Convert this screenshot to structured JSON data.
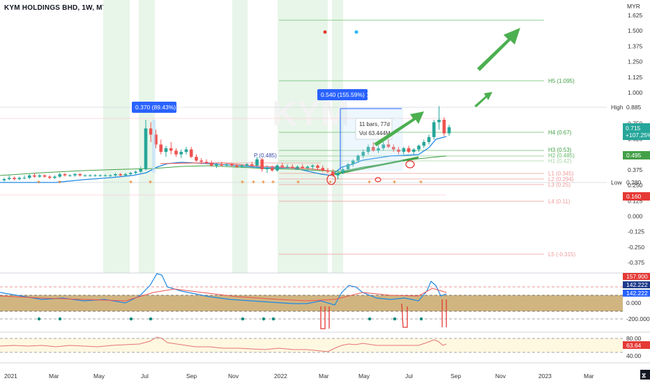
{
  "header": {
    "symbol_title": "KYM HOLDINGS BHD, 1W, MYX"
  },
  "watermark": "KYM",
  "currency": "MYR",
  "price_axis": {
    "labels": [
      "1.625",
      "1.500",
      "1.375",
      "1.250",
      "1.125",
      "1.000",
      "0.875",
      "0.750",
      "0.625",
      "0.375",
      "0.250",
      "0.125",
      "0.000",
      "-0.125",
      "-0.250",
      "-0.375"
    ]
  },
  "price_tags": {
    "high_label": "High",
    "high_value": "0.885",
    "current_value": "0.715",
    "current_change": "+107.25%",
    "green_value": "0.495",
    "low_label": "Low",
    "low_value": "0.280",
    "red_value": "0.160"
  },
  "pivot_levels": {
    "h5": "H5 (1.095)",
    "h4": "H4 (0.67)",
    "h3": "H3 (0.53)",
    "h2": "H2 (0.485)",
    "h1": "H1 (0.42)",
    "p": "P (0.485)",
    "l1": "L1 (0.345)",
    "l2": "L2 (0.294)",
    "l3": "L3 (0.25)",
    "l4": "L4 (0.11)",
    "l5": "L5 (-0.315)"
  },
  "measure_boxes": {
    "box1": "0.370 (89.43%) 74",
    "box2": "0.540 (155.59%) 108",
    "bars": "11 bars, 77d",
    "vol": "Vol 63.444M"
  },
  "osc1_axis": {
    "v1": "157.900",
    "v2": "142.222",
    "v3": "142.222",
    "zero": "0.000",
    "neg": "-200.000"
  },
  "osc2_axis": {
    "v80": "80.00",
    "v63": "63.64",
    "v40": "40.00"
  },
  "time_axis": [
    "2021",
    "Mar",
    "May",
    "Jul",
    "Sep",
    "Nov",
    "2022",
    "Mar",
    "May",
    "Jul",
    "Sep",
    "Nov",
    "2023",
    "Mar"
  ],
  "colors": {
    "up": "#26a69a",
    "down": "#ef5350",
    "accent": "#2962ff",
    "arrow": "#4caf50"
  },
  "chart_data": {
    "type": "candlestick",
    "timeframe": "1W",
    "price_range": [
      -0.375,
      1.625
    ],
    "ohlc": [
      [
        0.29,
        0.31,
        0.28,
        0.3
      ],
      [
        0.3,
        0.33,
        0.29,
        0.31
      ],
      [
        0.31,
        0.32,
        0.29,
        0.3
      ],
      [
        0.3,
        0.32,
        0.29,
        0.31
      ],
      [
        0.31,
        0.33,
        0.3,
        0.31
      ],
      [
        0.31,
        0.34,
        0.3,
        0.33
      ],
      [
        0.33,
        0.35,
        0.31,
        0.32
      ],
      [
        0.32,
        0.34,
        0.31,
        0.33
      ],
      [
        0.33,
        0.34,
        0.31,
        0.32
      ],
      [
        0.32,
        0.33,
        0.3,
        0.31
      ],
      [
        0.31,
        0.33,
        0.3,
        0.32
      ],
      [
        0.32,
        0.35,
        0.31,
        0.34
      ],
      [
        0.34,
        0.35,
        0.32,
        0.33
      ],
      [
        0.33,
        0.34,
        0.32,
        0.33
      ],
      [
        0.33,
        0.35,
        0.32,
        0.34
      ],
      [
        0.34,
        0.35,
        0.32,
        0.33
      ],
      [
        0.33,
        0.34,
        0.32,
        0.33
      ],
      [
        0.33,
        0.34,
        0.32,
        0.33
      ],
      [
        0.33,
        0.34,
        0.32,
        0.33
      ],
      [
        0.33,
        0.34,
        0.32,
        0.33
      ],
      [
        0.33,
        0.34,
        0.32,
        0.33
      ],
      [
        0.33,
        0.34,
        0.32,
        0.33
      ],
      [
        0.33,
        0.35,
        0.32,
        0.34
      ],
      [
        0.34,
        0.35,
        0.32,
        0.33
      ],
      [
        0.33,
        0.35,
        0.32,
        0.34
      ],
      [
        0.34,
        0.36,
        0.33,
        0.35
      ],
      [
        0.35,
        0.37,
        0.34,
        0.36
      ],
      [
        0.36,
        0.4,
        0.35,
        0.38
      ],
      [
        0.38,
        0.78,
        0.37,
        0.71
      ],
      [
        0.71,
        0.76,
        0.6,
        0.66
      ],
      [
        0.66,
        0.7,
        0.55,
        0.58
      ],
      [
        0.58,
        0.62,
        0.5,
        0.52
      ],
      [
        0.52,
        0.57,
        0.48,
        0.55
      ],
      [
        0.55,
        0.6,
        0.5,
        0.53
      ],
      [
        0.53,
        0.55,
        0.48,
        0.5
      ],
      [
        0.5,
        0.54,
        0.47,
        0.52
      ],
      [
        0.52,
        0.56,
        0.5,
        0.54
      ],
      [
        0.54,
        0.56,
        0.47,
        0.48
      ],
      [
        0.48,
        0.5,
        0.44,
        0.45
      ],
      [
        0.45,
        0.47,
        0.42,
        0.44
      ],
      [
        0.44,
        0.46,
        0.42,
        0.43
      ],
      [
        0.43,
        0.45,
        0.4,
        0.41
      ],
      [
        0.41,
        0.43,
        0.39,
        0.42
      ],
      [
        0.42,
        0.44,
        0.4,
        0.41
      ],
      [
        0.41,
        0.43,
        0.4,
        0.42
      ],
      [
        0.42,
        0.43,
        0.4,
        0.41
      ],
      [
        0.41,
        0.42,
        0.39,
        0.4
      ],
      [
        0.4,
        0.42,
        0.39,
        0.41
      ],
      [
        0.41,
        0.43,
        0.4,
        0.42
      ],
      [
        0.42,
        0.44,
        0.4,
        0.41
      ],
      [
        0.41,
        0.48,
        0.4,
        0.46
      ],
      [
        0.46,
        0.47,
        0.36,
        0.38
      ],
      [
        0.38,
        0.41,
        0.35,
        0.39
      ],
      [
        0.39,
        0.41,
        0.36,
        0.37
      ],
      [
        0.37,
        0.42,
        0.36,
        0.41
      ],
      [
        0.41,
        0.43,
        0.39,
        0.4
      ],
      [
        0.4,
        0.42,
        0.39,
        0.4
      ],
      [
        0.4,
        0.42,
        0.38,
        0.39
      ],
      [
        0.39,
        0.41,
        0.38,
        0.4
      ],
      [
        0.4,
        0.42,
        0.38,
        0.39
      ],
      [
        0.39,
        0.41,
        0.37,
        0.4
      ],
      [
        0.4,
        0.42,
        0.38,
        0.41
      ],
      [
        0.41,
        0.42,
        0.38,
        0.39
      ],
      [
        0.39,
        0.41,
        0.36,
        0.37
      ],
      [
        0.37,
        0.39,
        0.35,
        0.36
      ],
      [
        0.36,
        0.38,
        0.32,
        0.33
      ],
      [
        0.33,
        0.36,
        0.3,
        0.35
      ],
      [
        0.35,
        0.4,
        0.34,
        0.38
      ],
      [
        0.38,
        0.43,
        0.37,
        0.42
      ],
      [
        0.42,
        0.46,
        0.4,
        0.45
      ],
      [
        0.45,
        0.5,
        0.43,
        0.49
      ],
      [
        0.49,
        0.54,
        0.47,
        0.52
      ],
      [
        0.52,
        0.58,
        0.5,
        0.56
      ],
      [
        0.56,
        0.6,
        0.52,
        0.53
      ],
      [
        0.53,
        0.57,
        0.51,
        0.55
      ],
      [
        0.55,
        0.6,
        0.53,
        0.58
      ],
      [
        0.58,
        0.62,
        0.55,
        0.56
      ],
      [
        0.56,
        0.58,
        0.52,
        0.54
      ],
      [
        0.54,
        0.56,
        0.5,
        0.52
      ],
      [
        0.52,
        0.56,
        0.5,
        0.55
      ],
      [
        0.55,
        0.57,
        0.51,
        0.52
      ],
      [
        0.52,
        0.55,
        0.5,
        0.54
      ],
      [
        0.54,
        0.58,
        0.52,
        0.57
      ],
      [
        0.57,
        0.62,
        0.55,
        0.6
      ],
      [
        0.6,
        0.66,
        0.58,
        0.64
      ],
      [
        0.64,
        0.78,
        0.62,
        0.76
      ],
      [
        0.76,
        0.89,
        0.7,
        0.78
      ],
      [
        0.78,
        0.8,
        0.65,
        0.67
      ],
      [
        0.67,
        0.74,
        0.65,
        0.72
      ]
    ]
  }
}
